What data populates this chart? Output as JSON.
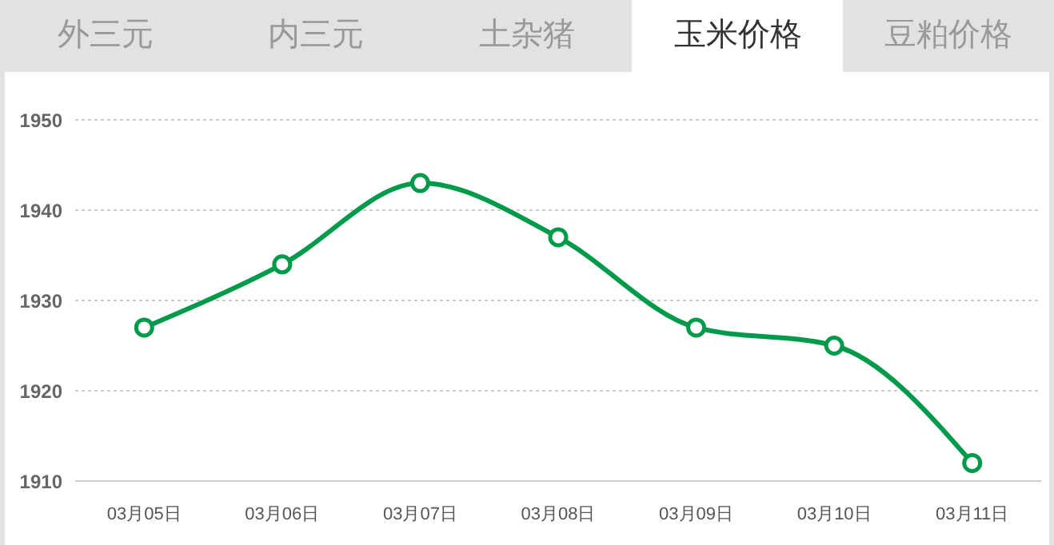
{
  "chart_data": {
    "type": "line",
    "annotations": [
      "外三元",
      "内三元",
      "土杂猪",
      "玉米价格",
      "豆粕价格"
    ],
    "categories": [
      "03月05日",
      "03月06日",
      "03月07日",
      "03月08日",
      "03月09日",
      "03月10日",
      "03月11日"
    ],
    "series": [
      {
        "color": "#009a4a",
        "values": [
          1927,
          1934,
          1943,
          1937,
          1927,
          1925,
          1912
        ]
      }
    ],
    "ylim": [
      1910,
      1950
    ],
    "yticks": [
      1910,
      1920,
      1930,
      1940,
      1950
    ],
    "grid": "y",
    "legend": false,
    "marker": "circle",
    "line_style": "solid"
  }
}
